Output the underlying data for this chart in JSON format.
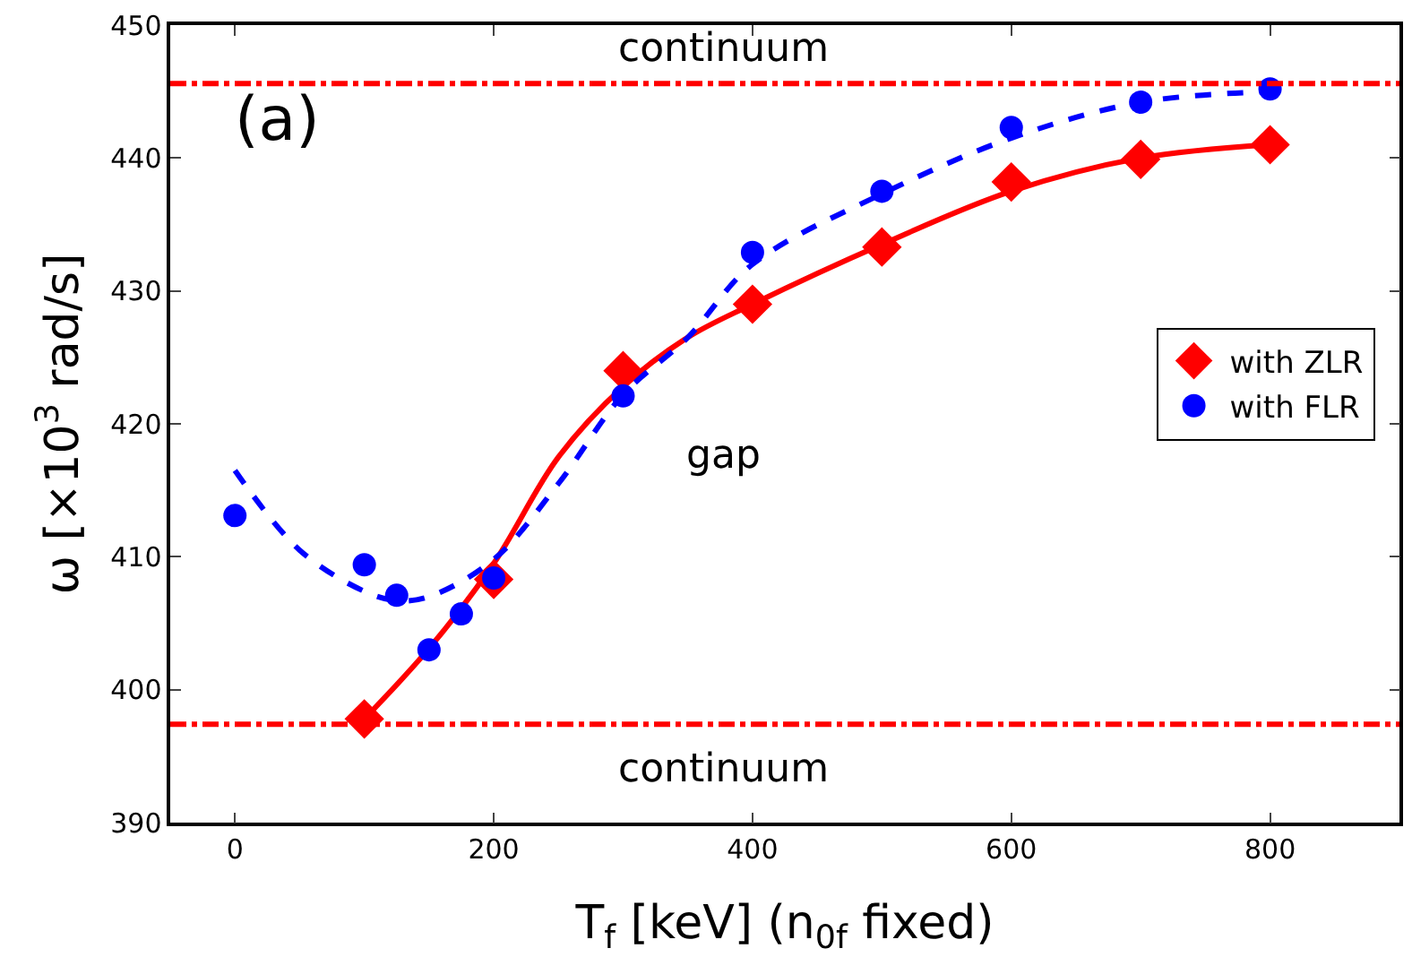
{
  "chart_data": {
    "type": "scatter",
    "xlabel": "T$_{f}$ [keV] (n$_{0f}$ fixed)",
    "ylabel": "ω [×10$^{3}$ rad/s]",
    "xlim": [
      -50,
      900
    ],
    "xticks": [
      0,
      200,
      400,
      600,
      800
    ],
    "ylim": [
      390,
      450
    ],
    "yticks": [
      390,
      400,
      410,
      420,
      430,
      440,
      450
    ],
    "grid": false,
    "legend": "right",
    "series": [
      {
        "type": "line",
        "color": "#ff0000",
        "line_style": "solid",
        "marker": "none",
        "x": [
          100,
          150,
          200,
          250,
          300,
          350,
          400,
          500,
          600,
          700,
          800
        ],
        "values": [
          397.8,
          403.1,
          409.5,
          417.5,
          422.8,
          426.5,
          429.0,
          433.5,
          437.5,
          440.0,
          441.0
        ]
      },
      {
        "type": "line",
        "color": "#0000ff",
        "line_style": "dashed",
        "marker": "none",
        "x": [
          0,
          50,
          100,
          125,
          150,
          200,
          250,
          300,
          350,
          400,
          500,
          600,
          700,
          800
        ],
        "values": [
          416.5,
          410.5,
          407.4,
          406.7,
          407.0,
          409.8,
          415.5,
          422.2,
          426.5,
          432.0,
          437.3,
          441.5,
          444.2,
          445.0
        ]
      },
      {
        "name": "with ZLR",
        "type": "scatter",
        "color": "#ff0000",
        "marker": "diamond",
        "x": [
          100,
          200,
          300,
          400,
          500,
          600,
          700,
          800
        ],
        "values": [
          397.8,
          408.3,
          424.0,
          429.0,
          433.3,
          438.2,
          439.9,
          441.0
        ]
      },
      {
        "name": "with FLR",
        "type": "scatter",
        "color": "#0000ff",
        "marker": "circle",
        "x": [
          0,
          100,
          125,
          150,
          175,
          200,
          300,
          400,
          500,
          600,
          700,
          800
        ],
        "values": [
          413.1,
          409.4,
          407.1,
          403.0,
          405.7,
          408.4,
          422.1,
          432.9,
          437.5,
          442.3,
          444.2,
          445.2
        ]
      }
    ],
    "ref_lines": [
      {
        "axis": "y",
        "value": 445.6,
        "color": "#ff0000",
        "line_style": "dashdot"
      },
      {
        "axis": "y",
        "value": 397.4,
        "color": "#ff0000",
        "line_style": "dashdot"
      }
    ],
    "annotations": [
      "(a)",
      "continuum",
      "gap",
      "continuum"
    ]
  }
}
